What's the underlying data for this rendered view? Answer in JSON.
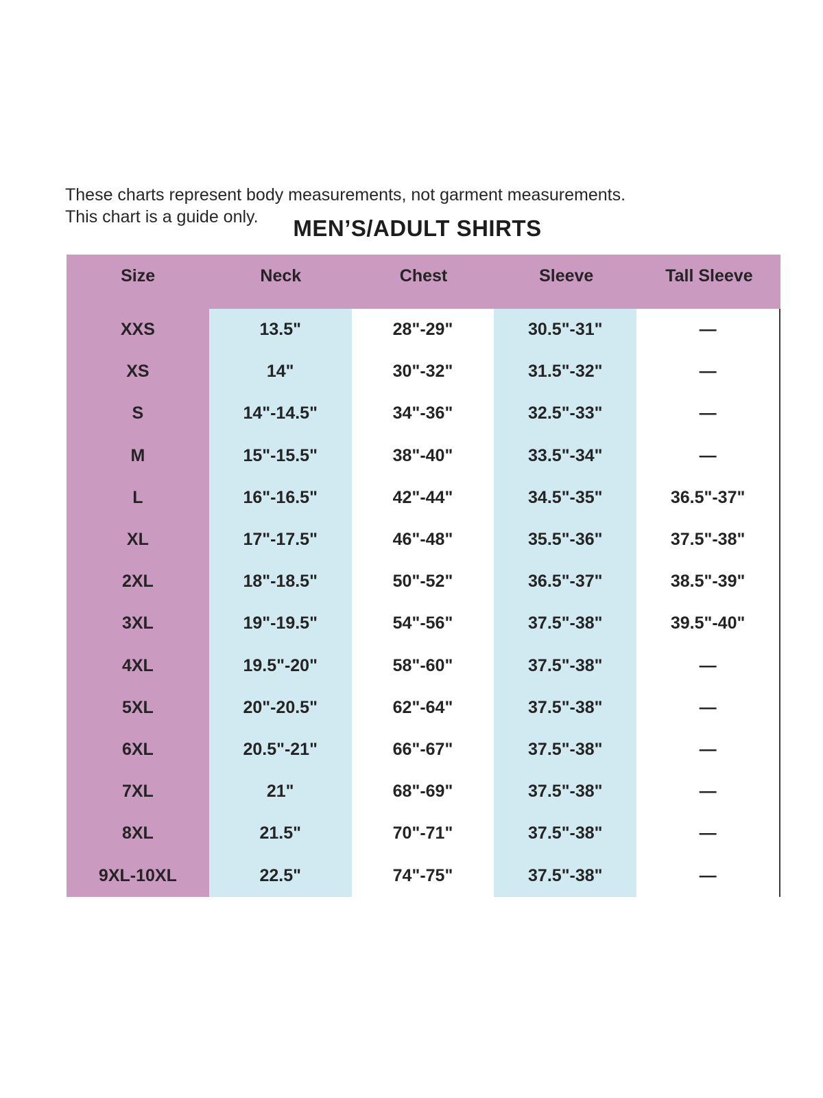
{
  "header": {
    "disclaimer_line1": "These charts represent body measurements, not garment measurements.",
    "disclaimer_line2": "This chart is a guide only.",
    "title": "MEN’S/ADULT SHIRTS"
  },
  "chart_data": {
    "type": "table",
    "title": "MEN’S/ADULT SHIRTS",
    "columns": [
      "Size",
      "Neck",
      "Chest",
      "Sleeve",
      "Tall Sleeve"
    ],
    "rows": [
      [
        "XXS",
        "13.5\"",
        "28\"-29\"",
        "30.5\"-31\"",
        "—"
      ],
      [
        "XS",
        "14\"",
        "30\"-32\"",
        "31.5\"-32\"",
        "—"
      ],
      [
        "S",
        "14\"-14.5\"",
        "34\"-36\"",
        "32.5\"-33\"",
        "—"
      ],
      [
        "M",
        "15\"-15.5\"",
        "38\"-40\"",
        "33.5\"-34\"",
        "—"
      ],
      [
        "L",
        "16\"-16.5\"",
        "42\"-44\"",
        "34.5\"-35\"",
        "36.5\"-37\""
      ],
      [
        "XL",
        "17\"-17.5\"",
        "46\"-48\"",
        "35.5\"-36\"",
        "37.5\"-38\""
      ],
      [
        "2XL",
        "18\"-18.5\"",
        "50\"-52\"",
        "36.5\"-37\"",
        "38.5\"-39\""
      ],
      [
        "3XL",
        "19\"-19.5\"",
        "54\"-56\"",
        "37.5\"-38\"",
        "39.5\"-40\""
      ],
      [
        "4XL",
        "19.5\"-20\"",
        "58\"-60\"",
        "37.5\"-38\"",
        "—"
      ],
      [
        "5XL",
        "20\"-20.5\"",
        "62\"-64\"",
        "37.5\"-38\"",
        "—"
      ],
      [
        "6XL",
        "20.5\"-21\"",
        "66\"-67\"",
        "37.5\"-38\"",
        "—"
      ],
      [
        "7XL",
        "21\"",
        "68\"-69\"",
        "37.5\"-38\"",
        "—"
      ],
      [
        "8XL",
        "21.5\"",
        "70\"-71\"",
        "37.5\"-38\"",
        "—"
      ],
      [
        "9XL-10XL",
        "22.5\"",
        "74\"-75\"",
        "37.5\"-38\"",
        "—"
      ]
    ],
    "column_backgrounds": [
      "pink",
      "blue",
      "white",
      "blue",
      "white"
    ],
    "grid": false,
    "legend_position": "none"
  },
  "colors": {
    "header_pink": "#cb9ac1",
    "column_blue": "#d1e9f0",
    "text": "#2e2e2e",
    "right_border": "#3a3a3a"
  }
}
